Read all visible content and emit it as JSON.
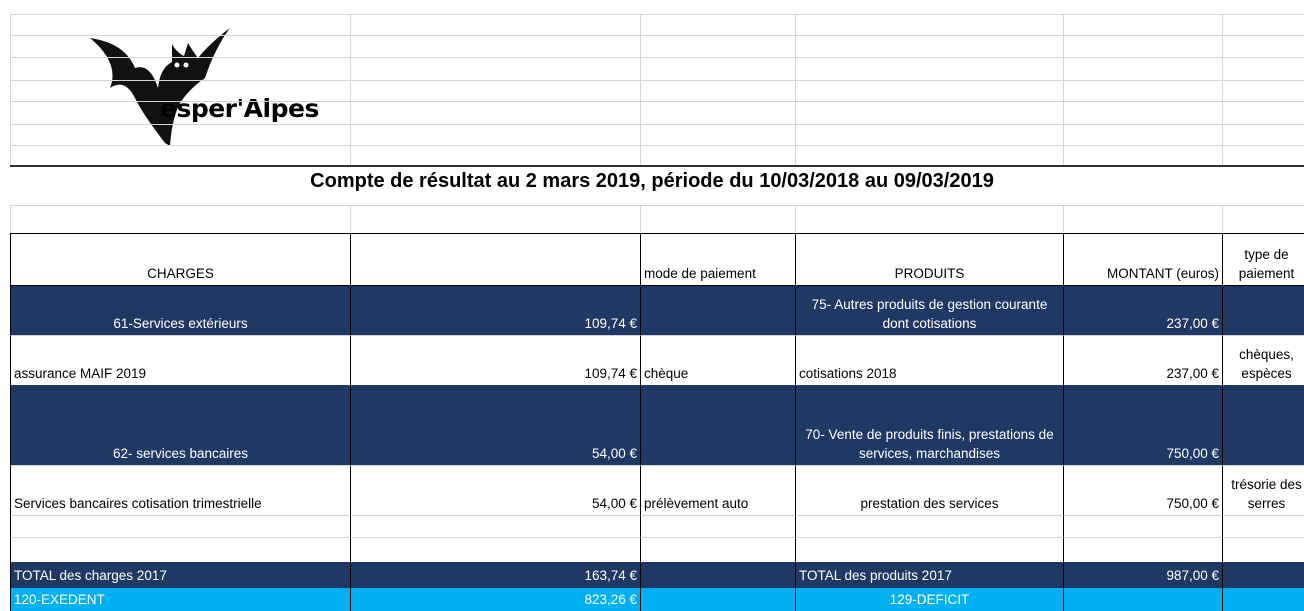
{
  "logo": {
    "text": "esper'Alpes"
  },
  "title": "Compte de résultat au 2 mars 2019, période du 10/03/2018 au 09/03/2019",
  "table": {
    "header": [
      "CHARGES",
      "mode de paiement",
      "PRODUITS",
      "MONTANT (euros)",
      "type de paiement"
    ],
    "rows": [
      {
        "charge": "61-Services extérieurs",
        "amount": "109,74 €",
        "produit": "75- Autres produits de gestion courante dont cotisations",
        "montant": "237,00 €"
      },
      {
        "charge": "assurance MAIF 2019",
        "amount": "109,74 €",
        "mode": "chèque",
        "produit": "cotisations 2018",
        "montant": "237,00 €",
        "type": "chèques, espèces"
      },
      {
        "charge": "62- services bancaires",
        "amount": "54,00 €",
        "produit": "70- Vente de produits finis, prestations de services, marchandises",
        "montant": "750,00 €"
      },
      {
        "charge": "Services bancaires cotisation trimestrielle",
        "amount": "54,00 €",
        "mode": "prélèvement auto",
        "produit": "prestation des services",
        "montant": "750,00 €",
        "type": "trésorie des serres"
      },
      {},
      {},
      {
        "charge": "TOTAL des charges 2017",
        "amount": "163,74 €",
        "produit": "TOTAL des produits 2017",
        "montant": "987,00 €"
      },
      {
        "charge": "120-EXEDENT",
        "amount": "823,26 €",
        "produit": "129-DEFICIT"
      }
    ]
  }
}
